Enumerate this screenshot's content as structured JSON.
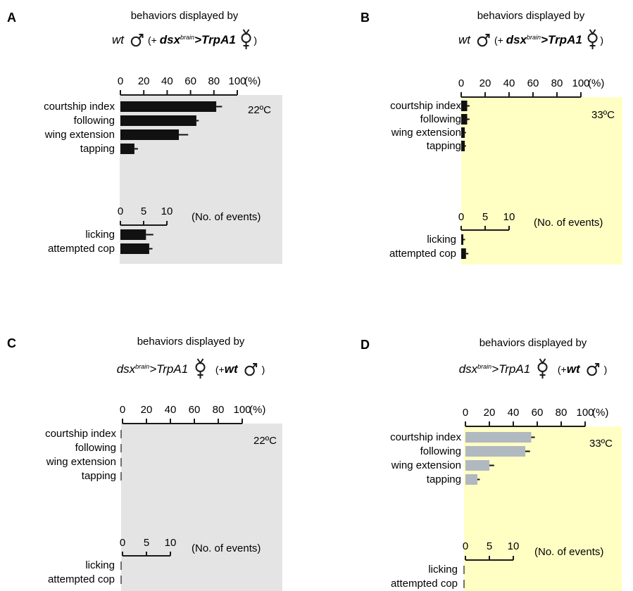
{
  "figure": {
    "heading": "behaviors displayed by",
    "pct_unit": "(%)",
    "events_unit": "(No. of events)",
    "genotype_male_first": {
      "part1": "wt",
      "part2": "(+",
      "part3": "dsx",
      "part4": "brain",
      "part5": ">TrpA1",
      "part6": ")"
    },
    "genotype_female_first": {
      "part1": "dsx",
      "part2": "brain",
      "part3": ">TrpA1",
      "part4": "(+",
      "part5": "wt",
      "part6": ")"
    },
    "colors": {
      "gray_bg": "#e4e4e4",
      "yellow_bg": "#ffffc4",
      "black_bar": "#111111",
      "gray_bar": "#b0b8c0",
      "text": "#1a1a1a"
    }
  },
  "chart_data": [
    {
      "panel": "A",
      "type": "bar",
      "orientation": "horizontal",
      "temperature": "22ºC",
      "background": "gray",
      "subject": "male-first",
      "pct_axis": {
        "ticks": [
          "0",
          "20",
          "40",
          "60",
          "80",
          "100"
        ],
        "unit": "(%)",
        "xlim": [
          0,
          100
        ]
      },
      "categories": [
        "courtship index",
        "following",
        "wing extension",
        "tapping"
      ],
      "values": [
        82,
        65,
        50,
        12
      ],
      "errors": [
        5,
        2,
        8,
        3
      ],
      "events_axis": {
        "ticks": [
          "0",
          "5",
          "10"
        ],
        "unit": "(No. of events)",
        "xlim": [
          0,
          10
        ]
      },
      "event_categories": [
        "licking",
        "attempted cop"
      ],
      "event_values": [
        5.5,
        6.2
      ],
      "event_errors": [
        1.6,
        0.7
      ],
      "bar_color": "black"
    },
    {
      "panel": "B",
      "type": "bar",
      "orientation": "horizontal",
      "temperature": "33ºC",
      "background": "yellow",
      "subject": "male-first",
      "pct_axis": {
        "ticks": [
          "0",
          "20",
          "40",
          "60",
          "80",
          "100"
        ],
        "unit": "(%)",
        "xlim": [
          0,
          100
        ]
      },
      "categories": [
        "courtship index",
        "following",
        "wing extension",
        "tapping"
      ],
      "values": [
        5,
        5,
        3,
        3
      ],
      "errors": [
        2,
        2,
        1,
        1
      ],
      "events_axis": {
        "ticks": [
          "0",
          "5",
          "10"
        ],
        "unit": "(No. of events)",
        "xlim": [
          0,
          10
        ]
      },
      "event_categories": [
        "licking",
        "attempted cop"
      ],
      "event_values": [
        0.4,
        1.0
      ],
      "event_errors": [
        0.4,
        0.5
      ],
      "bar_color": "black"
    },
    {
      "panel": "C",
      "type": "bar",
      "orientation": "horizontal",
      "temperature": "22ºC",
      "background": "gray",
      "subject": "female-first",
      "pct_axis": {
        "ticks": [
          "0",
          "20",
          "40",
          "60",
          "80",
          "100"
        ],
        "unit": "(%)",
        "xlim": [
          0,
          100
        ]
      },
      "categories": [
        "courtship index",
        "following",
        "wing extension",
        "tapping"
      ],
      "values": [
        0,
        0,
        0,
        0
      ],
      "errors": [
        0,
        0,
        0,
        0
      ],
      "events_axis": {
        "ticks": [
          "0",
          "5",
          "10"
        ],
        "unit": "(No. of events)",
        "xlim": [
          0,
          10
        ]
      },
      "event_categories": [
        "licking",
        "attempted cop"
      ],
      "event_values": [
        0,
        0
      ],
      "event_errors": [
        0,
        0
      ],
      "bar_color": "black"
    },
    {
      "panel": "D",
      "type": "bar",
      "orientation": "horizontal",
      "temperature": "33ºC",
      "background": "yellow",
      "subject": "female-first",
      "pct_axis": {
        "ticks": [
          "0",
          "20",
          "40",
          "60",
          "80",
          "100"
        ],
        "unit": "(%)",
        "xlim": [
          0,
          100
        ]
      },
      "categories": [
        "courtship index",
        "following",
        "wing extension",
        "tapping"
      ],
      "values": [
        55,
        50,
        20,
        10
      ],
      "errors": [
        3,
        4,
        4,
        2
      ],
      "events_axis": {
        "ticks": [
          "0",
          "5",
          "10"
        ],
        "unit": "(No. of events)",
        "xlim": [
          0,
          10
        ]
      },
      "event_categories": [
        "licking",
        "attempted cop"
      ],
      "event_values": [
        0,
        0
      ],
      "event_errors": [
        0,
        0
      ],
      "bar_color": "gray"
    }
  ]
}
